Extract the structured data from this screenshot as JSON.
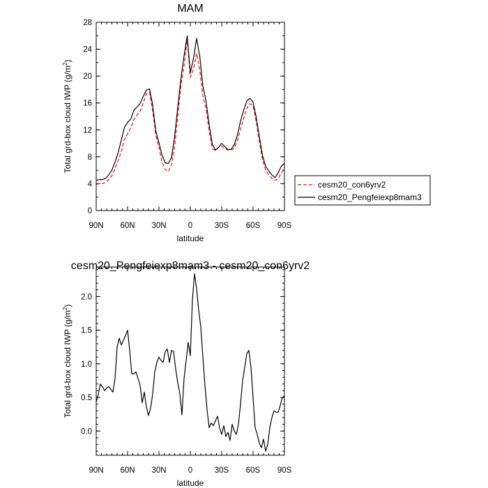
{
  "charts": [
    {
      "title": "MAM",
      "ylabel_main": "Total grd-box cloud IWP (g/m",
      "ylabel_sup": "2",
      "ylabel_end": ")",
      "xlabel": "latitude"
    },
    {
      "title": "cesm20_Pengfeiexp8mam3 - cesm20_con6yrv2",
      "ylabel_main": "Total grd-box cloud IWP (g/m",
      "ylabel_sup": "2",
      "ylabel_end": ")",
      "xlabel": "latitude"
    }
  ],
  "legend": {
    "items": [
      {
        "label": "cesm20_con6yrv2",
        "color": "#ff0000",
        "dash": "dashed"
      },
      {
        "label": "cesm20_Pengfeiexp8mam3",
        "color": "#000000",
        "dash": "solid"
      }
    ]
  },
  "chart_data": [
    {
      "type": "line",
      "title": "MAM",
      "xlabel": "latitude",
      "ylabel": "Total grd-box cloud IWP (g/m2)",
      "xlim": [
        90,
        -90
      ],
      "ylim": [
        0,
        28
      ],
      "x_ticks": [
        90,
        60,
        30,
        0,
        -30,
        -60,
        -90
      ],
      "x_tick_labels": [
        "90N",
        "60N",
        "30N",
        "0",
        "30S",
        "60S",
        "90S"
      ],
      "y_ticks": [
        0,
        4,
        8,
        12,
        16,
        20,
        24,
        28
      ],
      "y_tick_labels": [
        "0",
        "4",
        "8",
        "12",
        "16",
        "20",
        "24",
        "28"
      ],
      "legend_position": "right",
      "series": [
        {
          "name": "cesm20_con6yrv2",
          "color": "#ff0000",
          "dash": "dashed",
          "x": [
            90,
            87,
            84,
            81,
            78,
            75,
            72,
            69,
            66,
            63,
            60,
            57,
            54,
            51,
            48,
            45,
            42,
            39,
            36,
            33,
            30,
            27,
            24,
            21,
            18,
            15,
            12,
            9,
            6,
            3,
            0,
            -3,
            -6,
            -9,
            -12,
            -15,
            -18,
            -21,
            -24,
            -27,
            -30,
            -33,
            -36,
            -39,
            -42,
            -45,
            -48,
            -51,
            -54,
            -57,
            -60,
            -63,
            -66,
            -69,
            -72,
            -75,
            -78,
            -81,
            -84,
            -87,
            -90
          ],
          "y": [
            3.9,
            4.0,
            4.0,
            4.2,
            4.6,
            5.2,
            6.2,
            7.4,
            8.8,
            10.6,
            11.4,
            12.3,
            13.5,
            14.2,
            14.8,
            16.0,
            17.4,
            17.6,
            14.8,
            11.2,
            9.4,
            7.2,
            6.1,
            5.8,
            6.8,
            9.5,
            14.0,
            18.5,
            21.5,
            25.6,
            19.8,
            21.0,
            23.4,
            21.0,
            17.0,
            15.2,
            11.8,
            9.2,
            8.9,
            9.4,
            9.6,
            9.2,
            9.0,
            9.0,
            9.3,
            10.4,
            12.1,
            13.7,
            15.2,
            15.9,
            15.6,
            13.2,
            10.2,
            7.6,
            6.0,
            5.3,
            4.8,
            4.5,
            4.7,
            5.6,
            6.2
          ]
        },
        {
          "name": "cesm20_Pengfeiexp8mam3",
          "color": "#000000",
          "dash": "solid",
          "x": [
            90,
            87,
            84,
            81,
            78,
            75,
            72,
            69,
            66,
            63,
            60,
            57,
            54,
            51,
            48,
            45,
            42,
            39,
            36,
            33,
            30,
            27,
            24,
            21,
            18,
            15,
            12,
            9,
            6,
            3,
            0,
            -3,
            -6,
            -9,
            -12,
            -15,
            -18,
            -21,
            -24,
            -27,
            -30,
            -33,
            -36,
            -39,
            -42,
            -45,
            -48,
            -51,
            -54,
            -57,
            -60,
            -63,
            -66,
            -69,
            -72,
            -75,
            -78,
            -81,
            -84,
            -87,
            -90
          ],
          "y": [
            4.5,
            4.6,
            4.6,
            4.8,
            5.3,
            6.0,
            7.2,
            8.6,
            10.5,
            12.4,
            13.1,
            13.6,
            14.9,
            15.4,
            15.9,
            17.0,
            17.9,
            18.1,
            15.7,
            11.8,
            10.1,
            8.2,
            7.1,
            7.0,
            7.9,
            11.0,
            15.4,
            19.6,
            23.0,
            26.0,
            20.5,
            22.6,
            25.6,
            23.0,
            18.5,
            16.3,
            12.8,
            9.9,
            9.0,
            9.4,
            10.0,
            9.5,
            9.1,
            9.1,
            9.8,
            11.2,
            13.3,
            14.9,
            16.3,
            16.7,
            16.1,
            13.9,
            11.0,
            8.2,
            6.6,
            5.9,
            5.3,
            4.9,
            5.6,
            6.6,
            7.0
          ]
        }
      ]
    },
    {
      "type": "line",
      "title": "cesm20_Pengfeiexp8mam3 - cesm20_con6yrv2",
      "xlabel": "latitude",
      "ylabel": "Total grd-box cloud IWP (g/m2)",
      "xlim": [
        90,
        -90
      ],
      "ylim": [
        -0.36,
        2.44
      ],
      "x_ticks": [
        90,
        60,
        30,
        0,
        -30,
        -60,
        -90
      ],
      "x_tick_labels": [
        "90N",
        "60N",
        "30N",
        "0",
        "30S",
        "60S",
        "90S"
      ],
      "y_ticks": [
        0.0,
        0.5,
        1.0,
        1.5,
        2.0
      ],
      "y_tick_labels": [
        "0.0",
        "0.5",
        "1.0",
        "1.5",
        "2.0"
      ],
      "series": [
        {
          "name": "",
          "color": "#000000",
          "dash": "solid",
          "x": [
            90,
            88,
            86,
            84,
            82,
            80,
            78,
            76,
            74,
            72,
            70,
            68,
            66,
            64,
            62,
            60,
            58,
            56,
            54,
            52,
            50,
            48,
            46,
            44,
            42,
            40,
            38,
            36,
            34,
            32,
            30,
            28,
            26,
            24,
            22,
            20,
            18,
            16,
            14,
            12,
            10,
            8,
            6,
            4,
            2,
            0,
            -2,
            -4,
            -6,
            -8,
            -10,
            -12,
            -14,
            -16,
            -18,
            -20,
            -22,
            -24,
            -26,
            -28,
            -30,
            -32,
            -34,
            -36,
            -38,
            -40,
            -42,
            -44,
            -46,
            -48,
            -50,
            -52,
            -54,
            -56,
            -58,
            -60,
            -62,
            -64,
            -66,
            -68,
            -70,
            -72,
            -74,
            -76,
            -78,
            -80,
            -82,
            -84,
            -86,
            -88,
            -90
          ],
          "y": [
            0.43,
            0.55,
            0.7,
            0.66,
            0.6,
            0.64,
            0.66,
            0.62,
            0.58,
            0.78,
            1.25,
            1.38,
            1.28,
            1.35,
            1.42,
            1.5,
            1.2,
            0.85,
            0.85,
            0.88,
            0.78,
            0.68,
            0.42,
            0.58,
            0.36,
            0.23,
            0.34,
            0.55,
            0.88,
            1.02,
            1.1,
            1.05,
            1.02,
            1.18,
            1.22,
            1.02,
            1.2,
            1.18,
            0.92,
            0.72,
            0.55,
            0.24,
            0.78,
            1.05,
            1.32,
            1.12,
            1.95,
            2.34,
            2.12,
            1.8,
            1.55,
            1.1,
            0.68,
            0.32,
            0.05,
            0.12,
            0.08,
            0.15,
            0.22,
            0.05,
            -0.05,
            0.08,
            -0.08,
            -0.02,
            -0.14,
            0.1,
            0.0,
            -0.05,
            0.1,
            0.4,
            0.75,
            0.95,
            1.15,
            1.2,
            0.95,
            0.5,
            0.05,
            -0.05,
            -0.18,
            -0.25,
            -0.12,
            -0.3,
            -0.2,
            0.05,
            0.2,
            0.3,
            0.28,
            0.28,
            0.38,
            0.5,
            0.52
          ]
        }
      ]
    }
  ]
}
